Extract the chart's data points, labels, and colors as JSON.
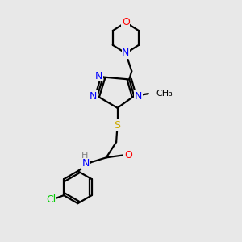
{
  "bg_color": "#e8e8e8",
  "bond_color": "#000000",
  "N_color": "#0000ff",
  "O_color": "#ff0000",
  "S_color": "#ccaa00",
  "Cl_color": "#00cc00",
  "H_color": "#808080",
  "figsize": [
    3.0,
    3.0
  ],
  "dpi": 100,
  "xlim": [
    0,
    10
  ],
  "ylim": [
    0,
    10
  ]
}
